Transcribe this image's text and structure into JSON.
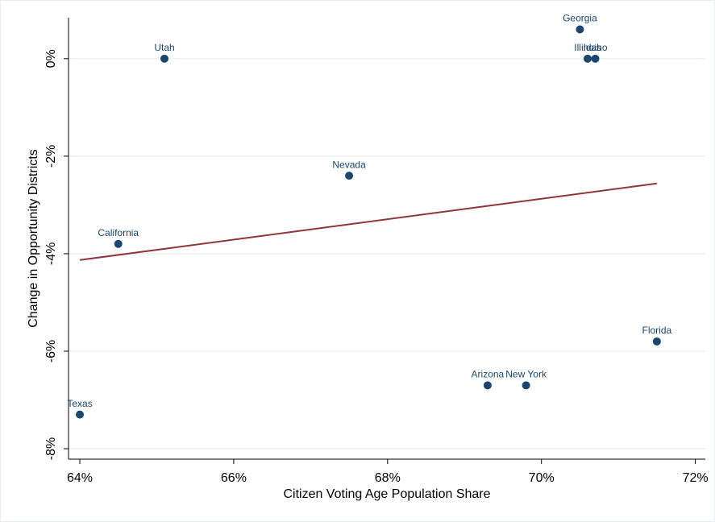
{
  "chart_data": {
    "type": "scatter",
    "x_label": "Citizen Voting Age Population Share",
    "y_label": "Change in Opportunity Districts",
    "labels": [
      "Georgia",
      "Utah",
      "Illinois",
      "Idaho",
      "Nevada",
      "California",
      "Florida",
      "Arizona",
      "New York",
      "Texas"
    ],
    "x": [
      70.5,
      65.1,
      70.6,
      70.7,
      67.5,
      64.5,
      71.5,
      69.3,
      69.8,
      64
    ],
    "values": [
      0.6,
      0,
      0,
      0,
      -2.4,
      -3.8,
      -5.8,
      -6.7,
      -6.7,
      -7.3
    ],
    "color": "#1a476f",
    "fit": {
      "x": [
        64,
        71.5
      ],
      "values": [
        -4.13,
        -2.56
      ],
      "color": "#90353b"
    },
    "xlim": [
      63.853,
      72.13
    ],
    "ylim": [
      -8.215,
      0.84
    ],
    "xticks": [
      {
        "value": 64,
        "label": "64%"
      },
      {
        "value": 66,
        "label": "66%"
      },
      {
        "value": 68,
        "label": "68%"
      },
      {
        "value": 70,
        "label": "70%"
      },
      {
        "value": 72,
        "label": "72%"
      }
    ],
    "yticks": [
      {
        "value": 0,
        "label": "0%"
      },
      {
        "value": -2,
        "label": "-2%"
      },
      {
        "value": -4,
        "label": "-4%"
      },
      {
        "value": -6,
        "label": "-6%"
      },
      {
        "value": -8,
        "label": "-8%"
      }
    ],
    "grid": true
  }
}
